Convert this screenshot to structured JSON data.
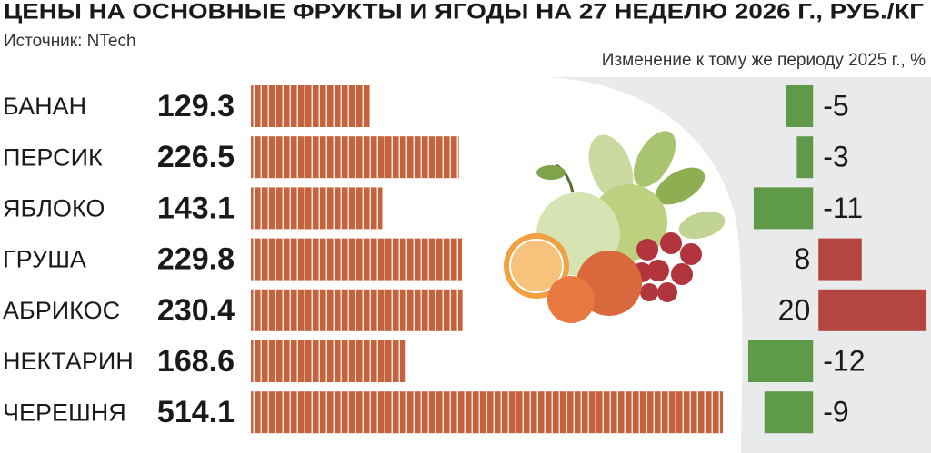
{
  "chart_data": [
    {
      "type": "hbar",
      "title": "ЦЕНЫ НА ОСНОВНЫЕ ФРУКТЫ И ЯГОДЫ НА 27 НЕДЕЛЮ 2026 Г., РУБ./КГ",
      "subtitle": "Источник: NTech",
      "categories": [
        "БАНАН",
        "ПЕРСИК",
        "ЯБЛОКО",
        "ГРУША",
        "АБРИКОС",
        "НЕКТАРИН",
        "ЧЕРЕШНЯ"
      ],
      "values": [
        129.3,
        226.5,
        143.1,
        229.8,
        230.4,
        168.6,
        514.1
      ],
      "color": "#c6633d",
      "xlim": [
        0,
        520
      ]
    },
    {
      "type": "diverging",
      "title": "Изменение к тому же периоду 2025 г., %",
      "values": [
        -5,
        -3,
        -11,
        8,
        20,
        -12,
        -9
      ],
      "color_negative": "#5e9a48",
      "color_positive": "#b5453f",
      "xlim": [
        -13,
        21
      ]
    }
  ]
}
